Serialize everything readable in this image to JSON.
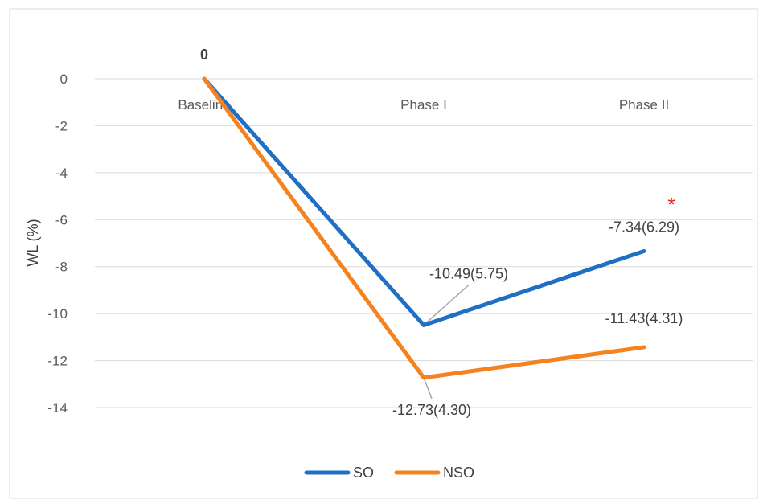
{
  "chart_data": {
    "type": "line",
    "title": "",
    "xlabel": "",
    "ylabel": "WL (%)",
    "categories": [
      "Baseline",
      "Phase I",
      "Phase II"
    ],
    "ylim": [
      -14,
      0
    ],
    "ytick_step": 2,
    "grid": true,
    "legend_position": "bottom",
    "series": [
      {
        "name": "SO",
        "color": "#1f6fc5",
        "values": [
          0,
          -10.49,
          -7.34
        ]
      },
      {
        "name": "NSO",
        "color": "#f5821f",
        "values": [
          0,
          -12.73,
          -11.43
        ]
      }
    ],
    "data_labels": [
      {
        "text": "0",
        "series": 0,
        "index": 0,
        "bold": true
      },
      {
        "text": "-10.49(5.75)",
        "series": 0,
        "index": 1,
        "leader": true
      },
      {
        "text": "-7.34(6.29)",
        "series": 0,
        "index": 2
      },
      {
        "text": "-12.73(4.30)",
        "series": 1,
        "index": 1,
        "leader": true
      },
      {
        "text": "-11.43(4.31)",
        "series": 1,
        "index": 2
      }
    ],
    "annotations": [
      {
        "text": "*",
        "color": "#e0201b",
        "series": 0,
        "index": 2
      }
    ]
  }
}
